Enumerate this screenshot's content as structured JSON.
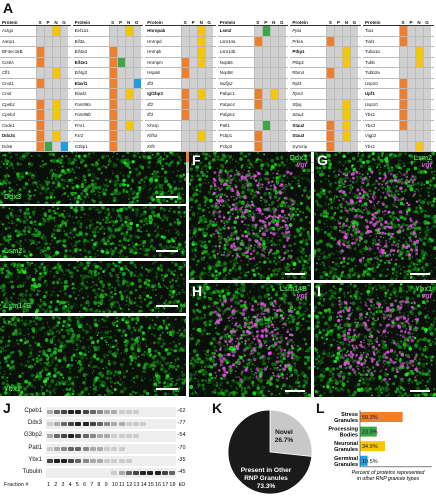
{
  "panel_labels": {
    "A": "A",
    "B": "B",
    "C": "C",
    "D": "D",
    "E": "E",
    "F": "F",
    "G": "G",
    "H": "H",
    "I": "I",
    "J": "J",
    "K": "K",
    "L": "L"
  },
  "colors": {
    "S": "#f07f2c",
    "P": "#3da648",
    "N": "#f6c700",
    "G": "#1f9de0",
    "empty": "#d0d0d0"
  },
  "table_headers": {
    "protein": "Protein",
    "S": "S",
    "P": "P",
    "N": "N",
    "G": "G"
  },
  "table_columns": [
    {
      "rows": [
        {
          "name": "Actg1",
          "style": "",
          "cells": [
            "",
            "",
            "N",
            ""
          ]
        },
        {
          "name": "Aimp1",
          "style": "",
          "cells": [
            "",
            "",
            "",
            ""
          ]
        },
        {
          "name": "BF4ec16B",
          "style": "",
          "cells": [
            "S",
            "",
            "",
            ""
          ]
        },
        {
          "name": "Cct6A",
          "style": "",
          "cells": [
            "S",
            "",
            "",
            ""
          ]
        },
        {
          "name": "Cfl1",
          "style": "",
          "cells": [
            "",
            "",
            "N",
            ""
          ]
        },
        {
          "name": "Cnot1",
          "style": "",
          "cells": [
            "S",
            "",
            "",
            ""
          ]
        },
        {
          "name": "Cnot",
          "style": "it",
          "cells": [
            "",
            "",
            "",
            ""
          ]
        },
        {
          "name": "Cpeb1",
          "style": "it",
          "cells": [
            "S",
            "",
            "N",
            ""
          ]
        },
        {
          "name": "Cpeb3",
          "style": "it",
          "cells": [
            "S",
            "",
            "N",
            ""
          ]
        },
        {
          "name": "Csde1",
          "style": "",
          "cells": [
            "S",
            "",
            "",
            ""
          ]
        },
        {
          "name": "Ddx3x",
          "style": "bold",
          "cells": [
            "S",
            "",
            "N",
            ""
          ]
        },
        {
          "name": "Ddx6",
          "style": "",
          "cells": [
            "S",
            "P",
            "",
            "G"
          ]
        },
        {
          "name": "Dhx9",
          "style": "",
          "cells": [
            "S",
            "",
            "N",
            ""
          ]
        },
        {
          "name": "Dync1i",
          "style": "",
          "cells": [
            "S",
            "",
            "",
            ""
          ]
        },
        {
          "name": "Dnmt2",
          "style": "it",
          "cells": [
            "S",
            "",
            "",
            ""
          ]
        }
      ]
    },
    {
      "rows": [
        {
          "name": "Eef1a1",
          "style": "",
          "cells": [
            "",
            "",
            "N",
            ""
          ]
        },
        {
          "name": "Eif3a",
          "style": "",
          "cells": [
            "",
            "",
            "",
            ""
          ]
        },
        {
          "name": "Eif4a3",
          "style": "",
          "cells": [
            "S",
            "",
            "",
            ""
          ]
        },
        {
          "name": "Eif4e1",
          "style": "bold",
          "cells": [
            "S",
            "P",
            "",
            ""
          ]
        },
        {
          "name": "Eif4g3",
          "style": "",
          "cells": [
            "S",
            "",
            "",
            ""
          ]
        },
        {
          "name": "Elavl1",
          "style": "bold",
          "cells": [
            "S",
            "",
            "",
            "G"
          ]
        },
        {
          "name": "Elavl2",
          "style": "",
          "cells": [
            "S",
            "",
            "N",
            ""
          ]
        },
        {
          "name": "Fam98a",
          "style": "it",
          "cells": [
            "S",
            "",
            "",
            ""
          ]
        },
        {
          "name": "Fam98b",
          "style": "it",
          "cells": [
            "S",
            "",
            "",
            ""
          ]
        },
        {
          "name": "Fmr1",
          "style": "",
          "cells": [
            "S",
            "",
            "N",
            ""
          ]
        },
        {
          "name": "Fxr2",
          "style": "it",
          "cells": [
            "S",
            "",
            "",
            ""
          ]
        },
        {
          "name": "G3bp1",
          "style": "",
          "cells": [
            "S",
            "",
            "",
            ""
          ]
        },
        {
          "name": "G3bp2",
          "style": "",
          "cells": [
            "S",
            "",
            "",
            ""
          ]
        },
        {
          "name": "Grsf1",
          "style": "",
          "cells": [
            "S",
            "",
            "N",
            ""
          ]
        },
        {
          "name": "Hist1h1c",
          "style": "",
          "cells": [
            "",
            "",
            "",
            ""
          ]
        }
      ]
    },
    {
      "rows": [
        {
          "name": "Hnrnpab",
          "style": "bold",
          "cells": [
            "",
            "",
            "N",
            ""
          ]
        },
        {
          "name": "Hnrnpd",
          "style": "",
          "cells": [
            "",
            "",
            "N",
            ""
          ]
        },
        {
          "name": "Hnrnpk",
          "style": "",
          "cells": [
            "",
            "",
            "N",
            ""
          ]
        },
        {
          "name": "Hnrnpm",
          "style": "",
          "cells": [
            "S",
            "",
            "N",
            ""
          ]
        },
        {
          "name": "Hspa8",
          "style": "",
          "cells": [
            "S",
            "",
            "",
            ""
          ]
        },
        {
          "name": "Ilf3",
          "style": "it",
          "cells": [
            "",
            "",
            "",
            ""
          ]
        },
        {
          "name": "Igf2bp3",
          "style": "bold",
          "cells": [
            "S",
            "",
            "N",
            ""
          ]
        },
        {
          "name": "Ilf2",
          "style": "it",
          "cells": [
            "S",
            "",
            "",
            ""
          ]
        },
        {
          "name": "Ilf3",
          "style": "it",
          "cells": [
            "S",
            "",
            "",
            ""
          ]
        },
        {
          "name": "Khsrp",
          "style": "",
          "cells": [
            "",
            "",
            "",
            ""
          ]
        },
        {
          "name": "Kif5a",
          "style": "it",
          "cells": [
            "",
            "",
            "N",
            ""
          ]
        },
        {
          "name": "Kif5",
          "style": "it",
          "cells": [
            "",
            "",
            "",
            ""
          ]
        },
        {
          "name": "Larp1",
          "style": "it",
          "cells": [
            "S",
            "",
            "",
            ""
          ]
        },
        {
          "name": "Lsm1",
          "style": "",
          "cells": [
            "",
            "P",
            "",
            ""
          ]
        }
      ]
    },
    {
      "rows": [
        {
          "name": "Lsm2",
          "style": "bold",
          "cells": [
            "",
            "P",
            "",
            ""
          ]
        },
        {
          "name": "Lsm14a",
          "style": "",
          "cells": [
            "S",
            "",
            "",
            ""
          ]
        },
        {
          "name": "Lsm14b",
          "style": "",
          "cells": [
            "",
            "",
            "",
            ""
          ]
        },
        {
          "name": "Nop56",
          "style": "",
          "cells": [
            "",
            "",
            "",
            ""
          ]
        },
        {
          "name": "Nop58",
          "style": "",
          "cells": [
            "",
            "",
            "",
            ""
          ]
        },
        {
          "name": "Nufip2",
          "style": "it",
          "cells": [
            "",
            "",
            "",
            ""
          ]
        },
        {
          "name": "Pabpc1",
          "style": "",
          "cells": [
            "S",
            "",
            "N",
            ""
          ]
        },
        {
          "name": "Pabpc4",
          "style": "it",
          "cells": [
            "S",
            "",
            "",
            ""
          ]
        },
        {
          "name": "Pabpn1",
          "style": "it",
          "cells": [
            "",
            "",
            "",
            ""
          ]
        },
        {
          "name": "Patl1",
          "style": "",
          "cells": [
            "",
            "P",
            "",
            ""
          ]
        },
        {
          "name": "Pcbp1",
          "style": "",
          "cells": [
            "S",
            "",
            "",
            ""
          ]
        },
        {
          "name": "Pcbp2",
          "style": "",
          "cells": [
            "S",
            "",
            "",
            ""
          ]
        },
        {
          "name": "Pum1",
          "style": "",
          "cells": [
            "S",
            "",
            "N",
            ""
          ]
        },
        {
          "name": "Pum2",
          "style": "it",
          "cells": [
            "S",
            "",
            "",
            ""
          ]
        },
        {
          "name": "Purb",
          "style": "it",
          "cells": [
            "",
            "",
            "N",
            ""
          ]
        }
      ]
    },
    {
      "rows": [
        {
          "name": "Ppia",
          "style": "it",
          "cells": [
            "",
            "",
            "",
            ""
          ]
        },
        {
          "name": "Prkra",
          "style": "",
          "cells": [
            "S",
            "",
            "",
            ""
          ]
        },
        {
          "name": "Ptbp1",
          "style": "bold",
          "cells": [
            "",
            "",
            "N",
            ""
          ]
        },
        {
          "name": "Ptbp2",
          "style": "",
          "cells": [
            "",
            "",
            "N",
            ""
          ]
        },
        {
          "name": "Rbm4",
          "style": "",
          "cells": [
            "S",
            "",
            "",
            ""
          ]
        },
        {
          "name": "Rpl3",
          "style": "",
          "cells": [
            "",
            "",
            "",
            ""
          ]
        },
        {
          "name": "Rps3",
          "style": "it",
          "cells": [
            "",
            "",
            "",
            ""
          ]
        },
        {
          "name": "Sfpq",
          "style": "",
          "cells": [
            "",
            "",
            "N",
            ""
          ]
        },
        {
          "name": "Stau1",
          "style": "it",
          "cells": [
            "",
            "",
            "N",
            ""
          ]
        },
        {
          "name": "Stau2",
          "style": "bold",
          "cells": [
            "S",
            "",
            "N",
            ""
          ]
        },
        {
          "name": "Stau3",
          "style": "bold",
          "cells": [
            "S",
            "",
            "N",
            ""
          ]
        },
        {
          "name": "Syncrip",
          "style": "",
          "cells": [
            "S",
            "",
            "",
            ""
          ]
        },
        {
          "name": "Tardbp",
          "style": "",
          "cells": [
            "",
            "",
            "",
            ""
          ]
        },
        {
          "name": "Snrpa",
          "style": "",
          "cells": [
            "",
            "",
            "",
            ""
          ]
        }
      ]
    },
    {
      "rows": [
        {
          "name": "Tia1",
          "style": "",
          "cells": [
            "S",
            "",
            "",
            ""
          ]
        },
        {
          "name": "Tial1",
          "style": "",
          "cells": [
            "S",
            "",
            "",
            ""
          ]
        },
        {
          "name": "Tuba1a",
          "style": "",
          "cells": [
            "",
            "",
            "N",
            ""
          ]
        },
        {
          "name": "Tubb",
          "style": "",
          "cells": [
            "",
            "",
            "N",
            ""
          ]
        },
        {
          "name": "Tubb2a",
          "style": "",
          "cells": [
            "",
            "",
            "",
            ""
          ]
        },
        {
          "name": "Usp10",
          "style": "",
          "cells": [
            "S",
            "",
            "",
            ""
          ]
        },
        {
          "name": "Upf1",
          "style": "bold",
          "cells": [
            "S",
            "",
            "",
            ""
          ]
        },
        {
          "name": "Usp10",
          "style": "",
          "cells": [
            "S",
            "",
            "",
            ""
          ]
        },
        {
          "name": "Ybx1",
          "style": "",
          "cells": [
            "S",
            "",
            "",
            ""
          ]
        },
        {
          "name": "Ybx3",
          "style": "it",
          "cells": [
            "S",
            "",
            "",
            ""
          ]
        },
        {
          "name": "Vigp2",
          "style": "it",
          "cells": [
            "",
            "",
            "",
            ""
          ]
        },
        {
          "name": "Ybx1",
          "style": "",
          "cells": [
            "",
            "",
            "N",
            ""
          ]
        },
        {
          "name": "Ybx2",
          "style": "",
          "cells": [
            "S",
            "P",
            "",
            ""
          ]
        },
        {
          "name": "Zfp",
          "style": "",
          "cells": [
            "S",
            "",
            "",
            ""
          ]
        },
        {
          "name": "Zar1l",
          "style": "it",
          "cells": [
            "S",
            "",
            "",
            ""
          ]
        }
      ]
    }
  ],
  "micrographs": {
    "B": {
      "label": "Ddx3"
    },
    "C": {
      "label": "Lsm2"
    },
    "D": {
      "label": "Lsm14B"
    },
    "E": {
      "label": "Ybx1"
    },
    "F": {
      "label": "Ddx3",
      "sub": "vgf"
    },
    "G": {
      "label": "Lsm2",
      "sub": "vgf"
    },
    "H": {
      "label": "Lsm14B",
      "sub": "vgf"
    },
    "I": {
      "label": "Ybx1",
      "sub": "vgf"
    }
  },
  "blot": {
    "proteins": [
      {
        "name": "Cpeb1",
        "kd": "-62"
      },
      {
        "name": "Ddx3",
        "kd": "-77"
      },
      {
        "name": "G3bp2",
        "kd": "-54"
      },
      {
        "name": "Patl1",
        "kd": "-70"
      },
      {
        "name": "Ybx1",
        "kd": "-35"
      },
      {
        "name": "Tubulin",
        "kd": "-45"
      }
    ],
    "fraction_label": "Fraction #",
    "fractions": [
      "1",
      "2",
      "3",
      "4",
      "5",
      "6",
      "7",
      "8",
      "9",
      "10",
      "11",
      "12",
      "13",
      "14",
      "15",
      "16",
      "17",
      "18"
    ],
    "kd_label": "kD"
  },
  "chart_data": [
    {
      "type": "pie",
      "labels": [
        "Novel",
        "Present in Other RNP Granules"
      ],
      "values": [
        26.7,
        73.3
      ],
      "display": [
        "26.7%",
        "73.3%"
      ],
      "colors": [
        "#c8c8c8",
        "#1a1a1a"
      ]
    },
    {
      "type": "bar",
      "orientation": "horizontal",
      "categories": [
        "Stress Granules",
        "Processing Bodies",
        "Neuronal Granules",
        "Germinal Granules"
      ],
      "values": [
        59.3,
        23.3,
        34.9,
        10.5
      ],
      "display": [
        "59.3%",
        "23.3%",
        "34.9%",
        "10.5%"
      ],
      "colors": [
        "#f07f2c",
        "#3da648",
        "#f6c700",
        "#1f9de0"
      ],
      "xlabel": "Percent of proteins represented in other RNP granule types",
      "xlim": [
        0,
        100
      ]
    }
  ]
}
